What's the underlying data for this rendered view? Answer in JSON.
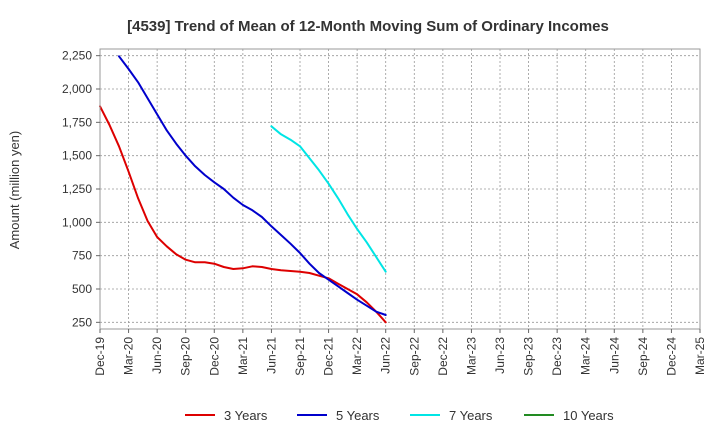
{
  "chart_data": {
    "type": "line",
    "title": "[4539]  Trend of Mean of 12-Month Moving Sum of Ordinary Incomes",
    "xlabel": "",
    "ylabel": "Amount (million yen)",
    "ylim": [
      200,
      2300
    ],
    "y_ticks": [
      250,
      500,
      750,
      1000,
      1250,
      1500,
      1750,
      2000,
      2250
    ],
    "y_tick_labels": [
      "250",
      "500",
      "750",
      "1,000",
      "1,250",
      "1,500",
      "1,750",
      "2,000",
      "2,250"
    ],
    "x_tick_labels": [
      "Dec-19",
      "Mar-20",
      "Jun-20",
      "Sep-20",
      "Dec-20",
      "Mar-21",
      "Jun-21",
      "Sep-21",
      "Dec-21",
      "Mar-22",
      "Jun-22",
      "Sep-22",
      "Dec-22",
      "Mar-23",
      "Jun-23",
      "Sep-23",
      "Dec-23",
      "Mar-24",
      "Jun-24",
      "Sep-24",
      "Dec-24",
      "Mar-25"
    ],
    "grid": true,
    "legend_position": "bottom",
    "series": [
      {
        "name": "3 Years",
        "color": "#dd0000",
        "points": [
          [
            0,
            1870
          ],
          [
            1,
            1730
          ],
          [
            2,
            1570
          ],
          [
            3,
            1380
          ],
          [
            4,
            1180
          ],
          [
            5,
            1010
          ],
          [
            6,
            890
          ],
          [
            7,
            820
          ],
          [
            8,
            760
          ],
          [
            9,
            720
          ],
          [
            10,
            700
          ],
          [
            11,
            700
          ],
          [
            12,
            690
          ],
          [
            13,
            665
          ],
          [
            14,
            650
          ],
          [
            15,
            655
          ],
          [
            16,
            670
          ],
          [
            17,
            665
          ],
          [
            18,
            650
          ],
          [
            19,
            640
          ],
          [
            20,
            635
          ],
          [
            21,
            630
          ],
          [
            22,
            620
          ],
          [
            23,
            600
          ],
          [
            24,
            580
          ],
          [
            25,
            540
          ],
          [
            26,
            500
          ],
          [
            27,
            460
          ],
          [
            28,
            400
          ],
          [
            29,
            330
          ],
          [
            30,
            250
          ]
        ]
      },
      {
        "name": "5 Years",
        "color": "#0000cc",
        "points": [
          [
            2,
            2245
          ],
          [
            3,
            2150
          ],
          [
            4,
            2050
          ],
          [
            5,
            1930
          ],
          [
            6,
            1810
          ],
          [
            7,
            1690
          ],
          [
            8,
            1590
          ],
          [
            9,
            1500
          ],
          [
            10,
            1420
          ],
          [
            11,
            1355
          ],
          [
            12,
            1300
          ],
          [
            13,
            1250
          ],
          [
            14,
            1185
          ],
          [
            15,
            1130
          ],
          [
            16,
            1090
          ],
          [
            17,
            1040
          ],
          [
            18,
            970
          ],
          [
            19,
            905
          ],
          [
            20,
            840
          ],
          [
            21,
            770
          ],
          [
            22,
            690
          ],
          [
            23,
            620
          ],
          [
            24,
            570
          ],
          [
            25,
            520
          ],
          [
            26,
            470
          ],
          [
            27,
            420
          ],
          [
            28,
            375
          ],
          [
            29,
            330
          ],
          [
            30,
            305
          ]
        ]
      },
      {
        "name": "7 Years",
        "color": "#00e5e5",
        "points": [
          [
            18,
            1720
          ],
          [
            19,
            1660
          ],
          [
            20,
            1620
          ],
          [
            21,
            1570
          ],
          [
            22,
            1480
          ],
          [
            23,
            1390
          ],
          [
            24,
            1290
          ],
          [
            25,
            1180
          ],
          [
            26,
            1060
          ],
          [
            27,
            950
          ],
          [
            28,
            850
          ],
          [
            29,
            740
          ],
          [
            30,
            630
          ]
        ]
      },
      {
        "name": "10 Years",
        "color": "#228b22",
        "points": []
      }
    ]
  }
}
